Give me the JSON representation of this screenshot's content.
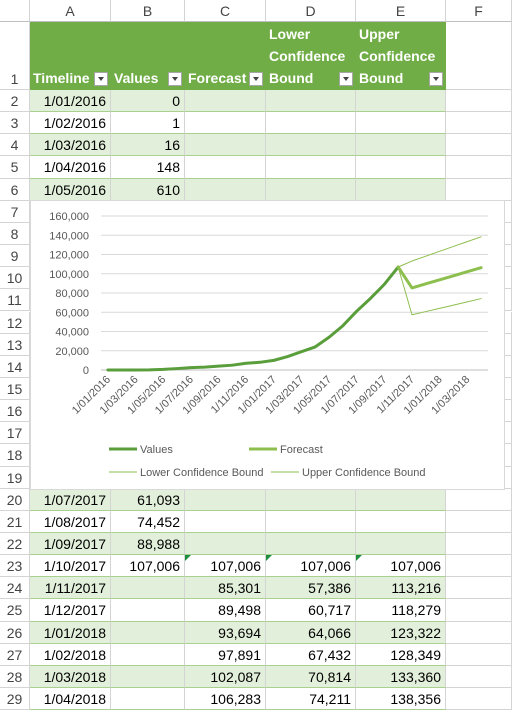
{
  "sheet": {
    "columns": [
      "A",
      "B",
      "C",
      "D",
      "E",
      "F"
    ],
    "row_numbers": [
      1,
      2,
      3,
      4,
      5,
      6,
      7,
      8,
      9,
      10,
      11,
      12,
      13,
      14,
      15,
      16,
      17,
      18,
      19,
      20,
      21,
      22,
      23,
      24,
      25,
      26,
      27,
      28,
      29
    ],
    "header": [
      "Timeline",
      "Values",
      "Forecast",
      "Lower Confidence Bound",
      "Upper Confidence Bound"
    ],
    "rows": [
      [
        "1/01/2016",
        "0",
        null,
        null,
        null
      ],
      [
        "1/02/2016",
        "1",
        null,
        null,
        null
      ],
      [
        "1/03/2016",
        "16",
        null,
        null,
        null
      ],
      [
        "1/04/2016",
        "148",
        null,
        null,
        null
      ],
      [
        "1/05/2016",
        "610",
        null,
        null,
        null
      ],
      null,
      null,
      null,
      null,
      null,
      null,
      null,
      null,
      null,
      null,
      null,
      null,
      null,
      [
        "1/07/2017",
        "61,093",
        null,
        null,
        null
      ],
      [
        "1/08/2017",
        "74,452",
        null,
        null,
        null
      ],
      [
        "1/09/2017",
        "88,988",
        null,
        null,
        null
      ],
      [
        "1/10/2017",
        "107,006",
        "107,006",
        "107,006",
        "107,006"
      ],
      [
        "1/11/2017",
        null,
        "85,301",
        "57,386",
        "113,216"
      ],
      [
        "1/12/2017",
        null,
        "89,498",
        "60,717",
        "118,279"
      ],
      [
        "1/01/2018",
        null,
        "93,694",
        "64,066",
        "123,322"
      ],
      [
        "1/02/2018",
        null,
        "97,891",
        "67,432",
        "128,349"
      ],
      [
        "1/03/2018",
        null,
        "102,087",
        "70,814",
        "133,360"
      ],
      [
        "1/04/2018",
        null,
        "106,283",
        "74,211",
        "138,356"
      ]
    ]
  },
  "chart_data": {
    "type": "line",
    "categories": [
      "1/01/2016",
      null,
      "1/03/2016",
      null,
      "1/05/2016",
      null,
      "1/07/2016",
      null,
      "1/09/2016",
      null,
      "1/11/2016",
      null,
      "1/01/2017",
      null,
      "1/03/2017",
      null,
      "1/05/2017",
      null,
      "1/07/2017",
      null,
      "1/09/2017",
      null,
      "1/11/2017",
      null,
      "1/01/2018",
      null,
      "1/03/2018",
      null
    ],
    "series": [
      {
        "name": "Values",
        "color": "#5a9e3c",
        "width": 3,
        "values": [
          0,
          1,
          16,
          148,
          610,
          1500,
          2500,
          3000,
          4000,
          5000,
          7000,
          8000,
          10000,
          14000,
          19000,
          24000,
          34000,
          46000,
          61093,
          74452,
          88988,
          107006,
          null,
          null,
          null,
          null,
          null,
          null
        ]
      },
      {
        "name": "Forecast",
        "color": "#8dbf4e",
        "width": 3,
        "values": [
          null,
          null,
          null,
          null,
          null,
          null,
          null,
          null,
          null,
          null,
          null,
          null,
          null,
          null,
          null,
          null,
          null,
          null,
          null,
          null,
          null,
          107006,
          85301,
          89498,
          93694,
          97891,
          102087,
          106283
        ]
      },
      {
        "name": "Lower Confidence Bound",
        "color": "#8dbf4e",
        "width": 1,
        "values": [
          null,
          null,
          null,
          null,
          null,
          null,
          null,
          null,
          null,
          null,
          null,
          null,
          null,
          null,
          null,
          null,
          null,
          null,
          null,
          null,
          null,
          107006,
          57386,
          60717,
          64066,
          67432,
          70814,
          74211
        ]
      },
      {
        "name": "Upper Confidence Bound",
        "color": "#8dbf4e",
        "width": 1,
        "values": [
          null,
          null,
          null,
          null,
          null,
          null,
          null,
          null,
          null,
          null,
          null,
          null,
          null,
          null,
          null,
          null,
          null,
          null,
          null,
          null,
          null,
          107006,
          113216,
          118279,
          123322,
          128349,
          133360,
          138356
        ]
      }
    ],
    "ylim": [
      0,
      160000
    ],
    "yticks": [
      0,
      {
        "value": 20000,
        "label": "20,000"
      },
      {
        "value": 40000,
        "label": "40,000"
      },
      {
        "value": 60000,
        "label": "60,000"
      },
      {
        "value": 80000,
        "label": "80,000"
      },
      {
        "value": 100000,
        "label": "100,000"
      },
      {
        "value": 120000,
        "label": "120,000"
      },
      {
        "value": 140000,
        "label": "140,000"
      },
      {
        "value": 160000,
        "label": "160,000"
      }
    ],
    "grid": true,
    "legend": "bottom"
  }
}
